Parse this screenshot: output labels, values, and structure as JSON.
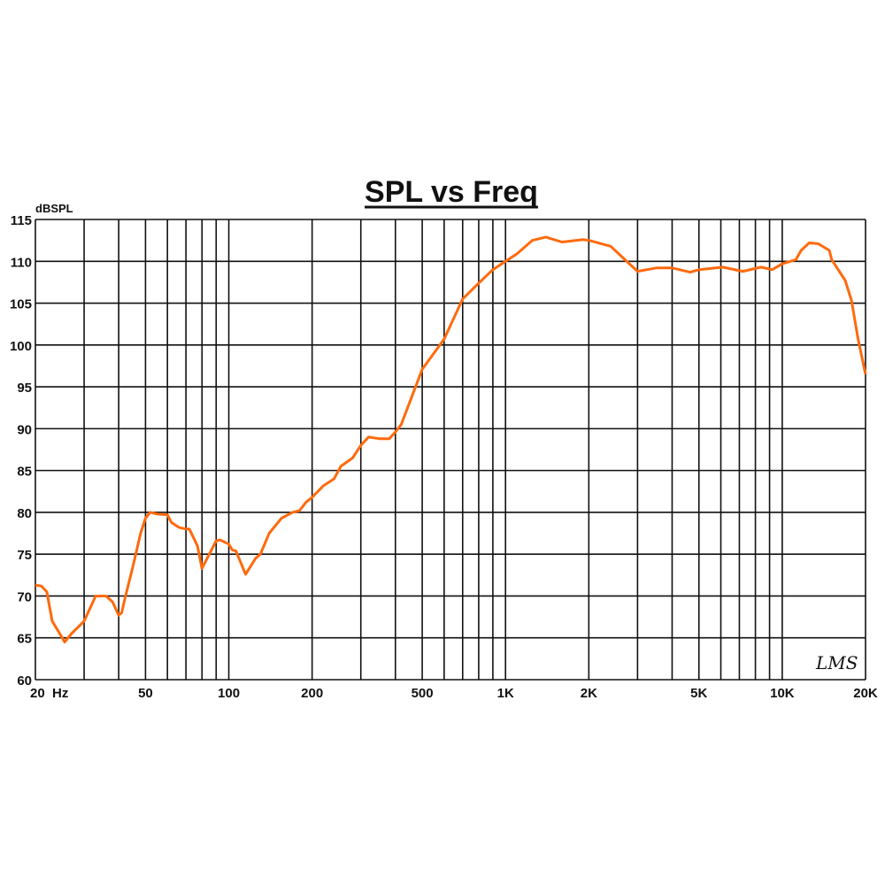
{
  "chart_data": {
    "type": "line",
    "title": "SPL vs Freq",
    "ylabel": "dBSPL",
    "xlabel": "",
    "xscale": "log",
    "xlim": [
      20,
      20000
    ],
    "ylim": [
      60,
      115
    ],
    "grid": true,
    "logo": "LMS",
    "line_color": "#ff6a0d",
    "yticks": [
      60,
      65,
      70,
      75,
      80,
      85,
      90,
      95,
      100,
      105,
      110,
      115
    ],
    "xticks": [
      {
        "value": 20,
        "label": "20  Hz"
      },
      {
        "value": 50,
        "label": "50"
      },
      {
        "value": 100,
        "label": "100"
      },
      {
        "value": 200,
        "label": "200"
      },
      {
        "value": 500,
        "label": "500"
      },
      {
        "value": 1000,
        "label": "1K"
      },
      {
        "value": 2000,
        "label": "2K"
      },
      {
        "value": 5000,
        "label": "5K"
      },
      {
        "value": 10000,
        "label": "10K"
      },
      {
        "value": 20000,
        "label": "20K"
      }
    ],
    "series": [
      {
        "x": [
          20,
          21,
          22,
          23,
          25,
          25.5,
          27,
          30,
          32,
          33,
          36,
          38,
          40,
          41,
          42,
          45,
          48,
          50,
          52,
          55,
          60,
          62,
          66,
          70,
          72,
          77,
          80,
          85,
          90,
          93,
          100,
          103,
          106,
          115,
          125,
          130,
          140,
          155,
          170,
          180,
          190,
          200,
          220,
          240,
          254,
          280,
          300,
          320,
          350,
          380,
          400,
          420,
          500,
          600,
          700,
          800,
          900,
          1000,
          1100,
          1250,
          1400,
          1600,
          1900,
          2000,
          2400,
          2700,
          3000,
          3500,
          4000,
          4650,
          5000,
          6100,
          7200,
          8400,
          9200,
          10000,
          11200,
          11700,
          12500,
          13500,
          14800,
          15100,
          16900,
          17800,
          18800,
          20000
        ],
        "y": [
          71.3,
          71.2,
          70.5,
          67,
          65,
          64.5,
          65.5,
          67,
          69,
          70,
          70,
          69.3,
          67.7,
          68,
          69.5,
          73.5,
          77.5,
          79.3,
          80,
          79.8,
          79.7,
          78.8,
          78.2,
          78,
          78,
          76,
          73.3,
          75,
          76.6,
          76.7,
          76.2,
          75.5,
          75.4,
          72.6,
          74.5,
          75,
          77.5,
          79.3,
          80,
          80.2,
          81.2,
          81.8,
          83.2,
          84,
          85.5,
          86.5,
          88,
          89,
          88.8,
          88.8,
          89.6,
          90.5,
          97.1,
          100.7,
          105.5,
          107.4,
          109,
          110,
          110.9,
          112.5,
          112.9,
          112.3,
          112.6,
          112.5,
          111.8,
          110.2,
          108.8,
          109.2,
          109.2,
          108.7,
          109,
          109.3,
          108.8,
          109.3,
          109,
          109.7,
          110.2,
          111.3,
          112.2,
          112.1,
          111.3,
          110.2,
          107.7,
          105.3,
          100.7,
          96.5
        ]
      }
    ]
  }
}
